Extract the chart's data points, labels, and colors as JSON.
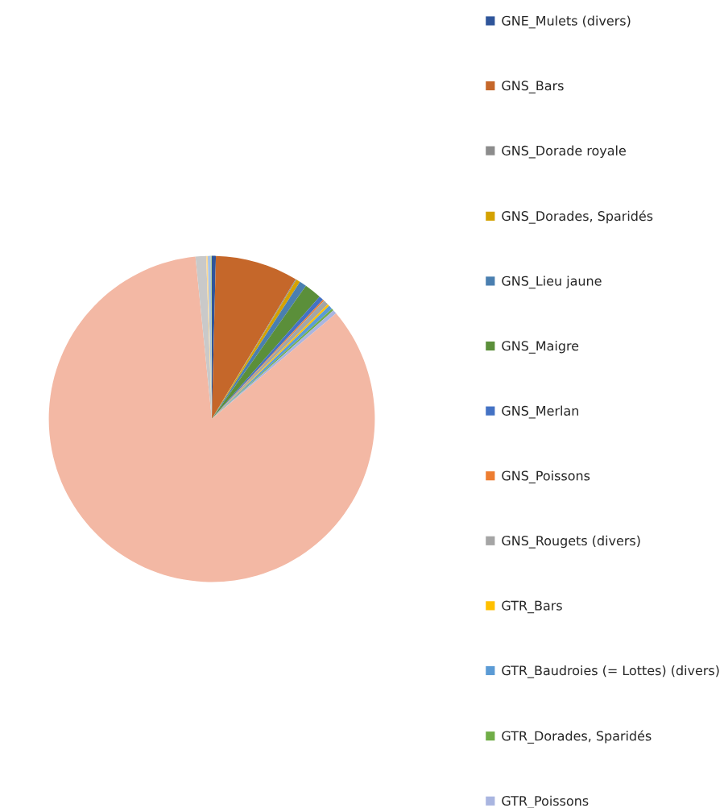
{
  "chart_data": {
    "type": "pie",
    "categories": [
      "GNE_Mulets (divers)",
      "GNS_Bars",
      "GNS_Dorade royale",
      "GNS_Dorades, Sparidés",
      "GNS_Lieu jaune",
      "GNS_Maigre",
      "GNS_Merlan",
      "GNS_Poissons",
      "GNS_Rougets (divers)",
      "GTR_Bars",
      "GTR_Baudroies (= Lottes) (divers)",
      "GTR_Dorades, Sparidés",
      "GTR_Poissons",
      null,
      null,
      null,
      null,
      null
    ],
    "values": [
      0.4,
      8.2,
      0.1,
      0.4,
      0.7,
      1.7,
      0.45,
      0.15,
      0.5,
      0.2,
      0.4,
      0.2,
      0.4,
      84.6,
      1.05,
      0.15,
      0.3,
      0.1
    ],
    "colors": [
      "#2f559a",
      "#c5672a",
      "#8c8c8c",
      "#d4a200",
      "#4a7fb0",
      "#5b8f3a",
      "#4472c4",
      "#ed7d31",
      "#a5a5a5",
      "#ffc000",
      "#5b9bd5",
      "#70ad47",
      "#a9b5e0",
      "#f3b8a4",
      "#c9c9c9",
      "#ffd98f",
      "#a9c4e6",
      "#b4cf9a"
    ],
    "legend": "right"
  }
}
